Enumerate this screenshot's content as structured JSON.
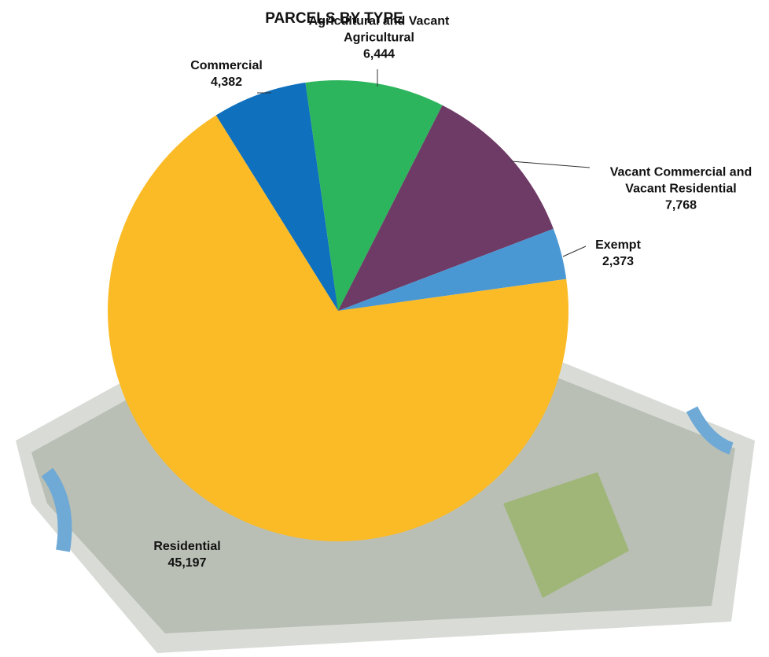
{
  "chart_data": {
    "type": "pie",
    "title": "PARCELS BY TYPE",
    "categories": [
      "Commercial",
      "Agricultural and Vacant Agricultural",
      "Vacant Commercial and Vacant Residential",
      "Exempt",
      "Residential"
    ],
    "values": [
      4382,
      6444,
      7768,
      2373,
      45197
    ],
    "value_labels": [
      "4,382",
      "6,444",
      "7,768",
      "2,373",
      "45,197"
    ],
    "colors": [
      "#0f70bd",
      "#2db55d",
      "#6e3a66",
      "#4a98d3",
      "#fbbb27"
    ]
  }
}
